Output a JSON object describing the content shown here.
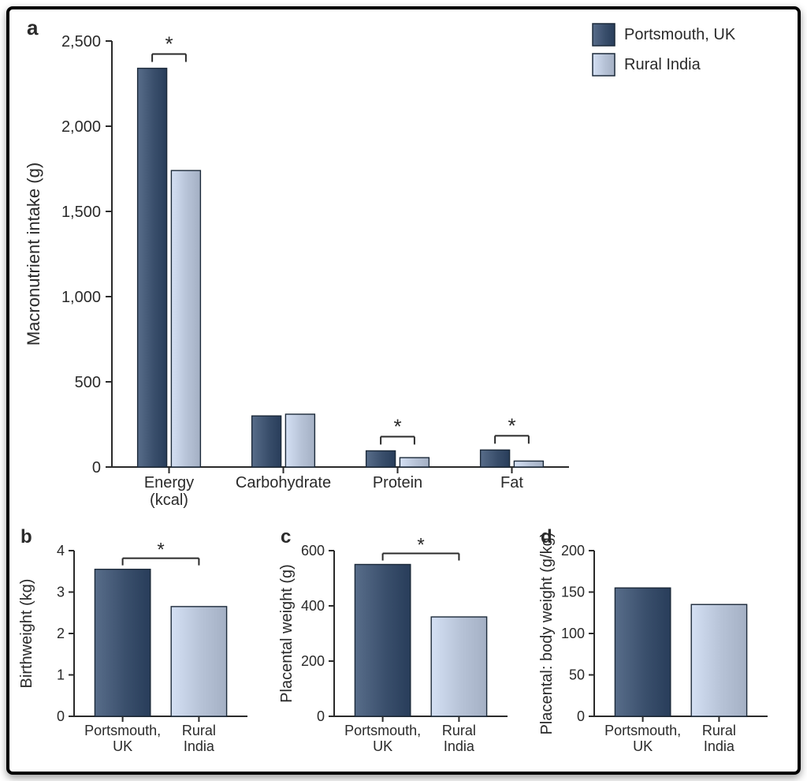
{
  "colors": {
    "series_dark": "#3a4f6c",
    "series_light": "#b6c2d6",
    "bar_stroke": "#1c2a3a",
    "axis": "#2a2a2a",
    "text": "#2a2a2a",
    "bg": "#ffffff",
    "sig_line": "#2a2a2a"
  },
  "legend": {
    "items": [
      {
        "label": "Portsmouth, UK",
        "swatch": "dark"
      },
      {
        "label": "Rural India",
        "swatch": "light"
      }
    ],
    "fontsize": 20
  },
  "panel_a": {
    "letter": "a",
    "type": "grouped-bar",
    "ylabel": "Macronutrient intake (g)",
    "label_fontsize": 22,
    "tick_fontsize": 20,
    "ylim": [
      0,
      2500
    ],
    "ytick_step": 500,
    "ytick_format": "comma",
    "categories": [
      "Energy\n(kcal)",
      "Carbohydrate",
      "Protein",
      "Fat"
    ],
    "series": [
      {
        "name": "Portsmouth, UK",
        "color_key": "dark",
        "values": [
          2340,
          300,
          95,
          100
        ]
      },
      {
        "name": "Rural India",
        "color_key": "light",
        "values": [
          1740,
          310,
          55,
          35
        ]
      }
    ],
    "sig_markers": [
      {
        "category_index": 0
      },
      {
        "category_index": 2
      },
      {
        "category_index": 3
      }
    ],
    "bar_group_width": 0.55,
    "bar_gap_within": 0.04
  },
  "panel_b": {
    "letter": "b",
    "type": "bar-pair",
    "ylabel": "Birthweight (kg)",
    "label_fontsize": 22,
    "tick_fontsize": 20,
    "ylim": [
      0,
      4
    ],
    "ytick_step": 1,
    "categories": [
      "Portsmouth,\nUK",
      "Rural\nIndia"
    ],
    "values": [
      3.55,
      2.65
    ],
    "color_keys": [
      "dark",
      "light"
    ],
    "sig_marker": true,
    "bar_width": 0.32
  },
  "panel_c": {
    "letter": "c",
    "type": "bar-pair",
    "ylabel": "Placental weight (g)",
    "label_fontsize": 22,
    "tick_fontsize": 20,
    "ylim": [
      0,
      600
    ],
    "ytick_step": 200,
    "categories": [
      "Portsmouth,\nUK",
      "Rural\nIndia"
    ],
    "values": [
      550,
      360
    ],
    "color_keys": [
      "dark",
      "light"
    ],
    "sig_marker": true,
    "bar_width": 0.32
  },
  "panel_d": {
    "letter": "d",
    "type": "bar-pair",
    "ylabel": "Placental: body weight (g/kg)",
    "label_fontsize": 22,
    "tick_fontsize": 20,
    "ylim": [
      0,
      200
    ],
    "ytick_step": 50,
    "categories": [
      "Portsmouth,\nUK",
      "Rural\nIndia"
    ],
    "values": [
      155,
      135
    ],
    "color_keys": [
      "dark",
      "light"
    ],
    "sig_marker": false,
    "bar_width": 0.32
  }
}
